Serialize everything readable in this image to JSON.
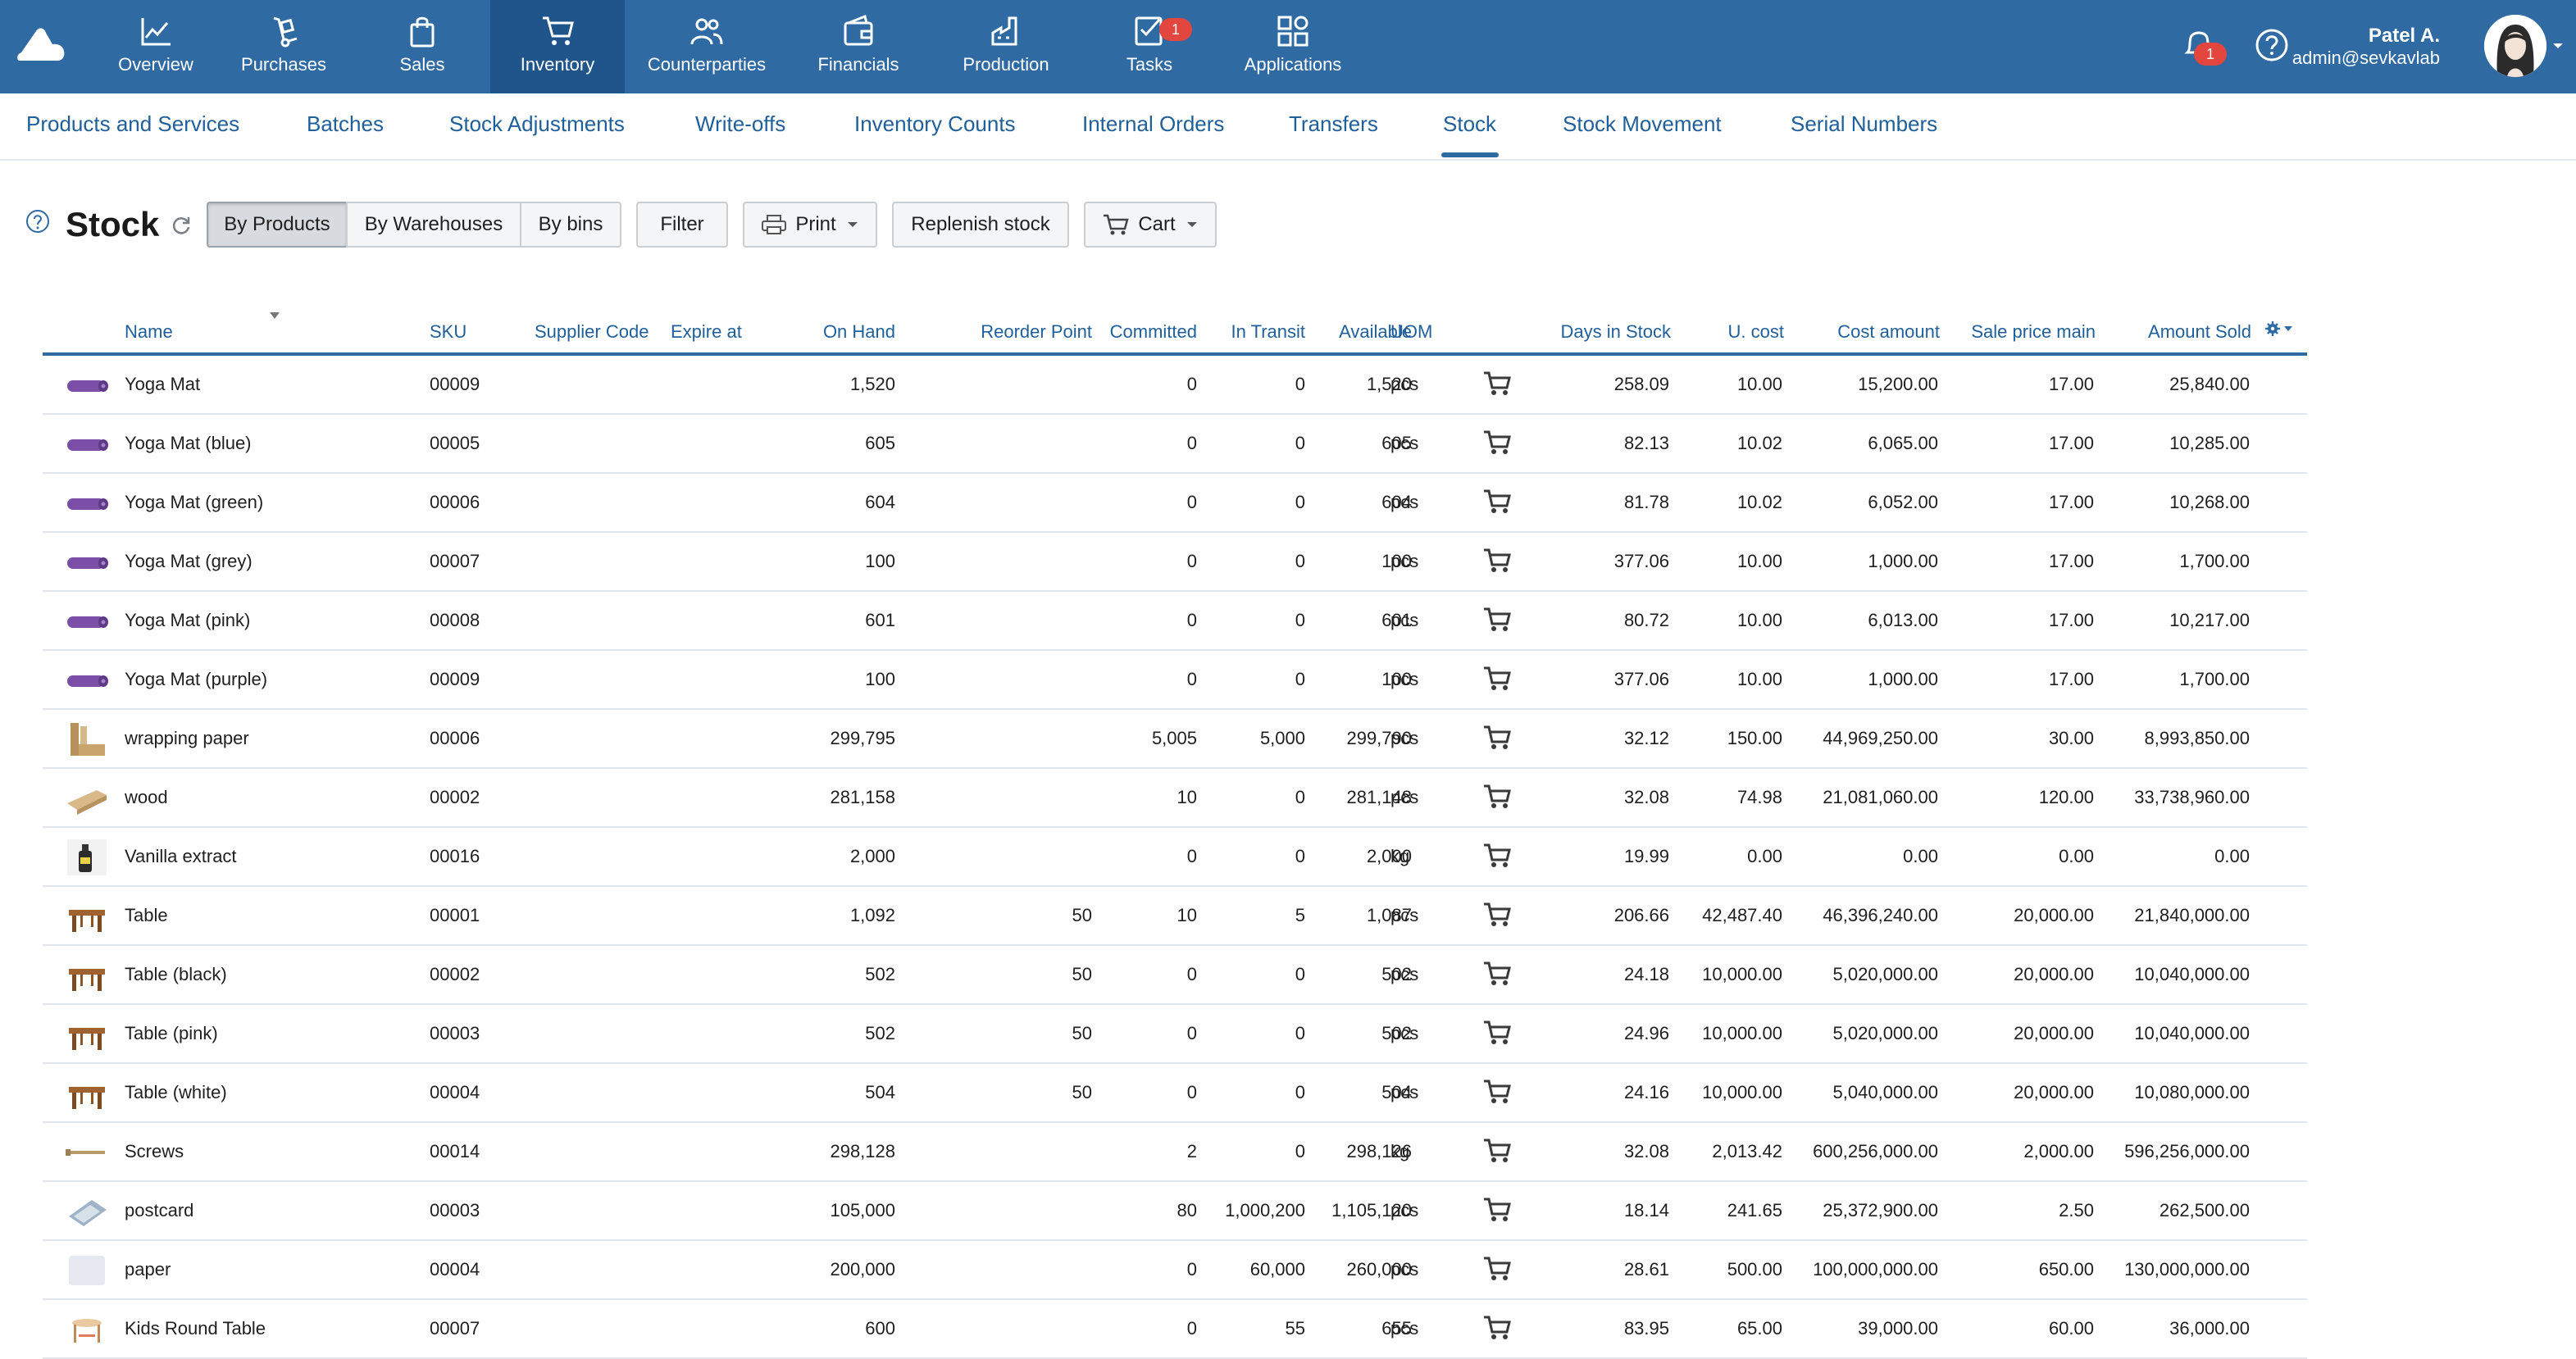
{
  "topnav": {
    "items": [
      {
        "label": "Overview",
        "icon": "chart-line-icon"
      },
      {
        "label": "Purchases",
        "icon": "hand-truck-icon"
      },
      {
        "label": "Sales",
        "icon": "shopping-bag-icon"
      },
      {
        "label": "Inventory",
        "icon": "cart-icon"
      },
      {
        "label": "Counterparties",
        "icon": "people-icon"
      },
      {
        "label": "Financials",
        "icon": "wallet-icon"
      },
      {
        "label": "Production",
        "icon": "factory-icon"
      },
      {
        "label": "Tasks",
        "icon": "checklist-icon"
      },
      {
        "label": "Applications",
        "icon": "apps-icon"
      }
    ],
    "tasks_badge": "1",
    "notifications_badge": "1",
    "user_name": "Patel A.",
    "user_email": "admin@sevkavlab"
  },
  "subnav": {
    "items": [
      "Products and Services",
      "Batches",
      "Stock Adjustments",
      "Write-offs",
      "Inventory Counts",
      "Internal Orders",
      "Transfers",
      "Stock",
      "Stock Movement",
      "Serial Numbers"
    ],
    "active": "Stock"
  },
  "page": {
    "title": "Stock",
    "view_buttons": [
      "By Products",
      "By Warehouses",
      "By bins"
    ],
    "filter_label": "Filter",
    "print_label": "Print",
    "replenish_label": "Replenish stock",
    "cart_label": "Cart"
  },
  "table": {
    "columns": {
      "name": "Name",
      "sku": "SKU",
      "supplier_code": "Supplier Code",
      "expire_at": "Expire at",
      "on_hand": "On Hand",
      "reorder_point": "Reorder Point",
      "committed": "Committed",
      "in_transit": "In Transit",
      "available": "Available",
      "uom": "UOM",
      "days_in_stock": "Days in Stock",
      "unit_cost": "U. cost",
      "cost_amount": "Cost amount",
      "sale_price_main": "Sale price main",
      "amount_sold": "Amount Sold"
    },
    "rows": [
      {
        "thumb": "yoga-mat",
        "name": "Yoga Mat",
        "sku": "00009",
        "on_hand": "1,520",
        "reorder_point": "",
        "committed": "0",
        "in_transit": "0",
        "available": "1,520",
        "uom": "pcs",
        "days": "258.09",
        "ucost": "10.00",
        "cost_amount": "15,200.00",
        "sale_price": "17.00",
        "amount_sold": "25,840.00"
      },
      {
        "thumb": "yoga-mat",
        "name": "Yoga Mat (blue)",
        "sku": "00005",
        "on_hand": "605",
        "reorder_point": "",
        "committed": "0",
        "in_transit": "0",
        "available": "605",
        "uom": "pcs",
        "days": "82.13",
        "ucost": "10.02",
        "cost_amount": "6,065.00",
        "sale_price": "17.00",
        "amount_sold": "10,285.00"
      },
      {
        "thumb": "yoga-mat",
        "name": "Yoga Mat (green)",
        "sku": "00006",
        "on_hand": "604",
        "reorder_point": "",
        "committed": "0",
        "in_transit": "0",
        "available": "604",
        "uom": "pcs",
        "days": "81.78",
        "ucost": "10.02",
        "cost_amount": "6,052.00",
        "sale_price": "17.00",
        "amount_sold": "10,268.00"
      },
      {
        "thumb": "yoga-mat",
        "name": "Yoga Mat (grey)",
        "sku": "00007",
        "on_hand": "100",
        "reorder_point": "",
        "committed": "0",
        "in_transit": "0",
        "available": "100",
        "uom": "pcs",
        "days": "377.06",
        "ucost": "10.00",
        "cost_amount": "1,000.00",
        "sale_price": "17.00",
        "amount_sold": "1,700.00"
      },
      {
        "thumb": "yoga-mat",
        "name": "Yoga Mat (pink)",
        "sku": "00008",
        "on_hand": "601",
        "reorder_point": "",
        "committed": "0",
        "in_transit": "0",
        "available": "601",
        "uom": "pcs",
        "days": "80.72",
        "ucost": "10.00",
        "cost_amount": "6,013.00",
        "sale_price": "17.00",
        "amount_sold": "10,217.00"
      },
      {
        "thumb": "yoga-mat",
        "name": "Yoga Mat (purple)",
        "sku": "00009",
        "on_hand": "100",
        "reorder_point": "",
        "committed": "0",
        "in_transit": "0",
        "available": "100",
        "uom": "pcs",
        "days": "377.06",
        "ucost": "10.00",
        "cost_amount": "1,000.00",
        "sale_price": "17.00",
        "amount_sold": "1,700.00"
      },
      {
        "thumb": "paper-roll",
        "name": "wrapping paper",
        "sku": "00006",
        "on_hand": "299,795",
        "reorder_point": "",
        "committed": "5,005",
        "in_transit": "5,000",
        "available": "299,790",
        "uom": "pcs",
        "days": "32.12",
        "ucost": "150.00",
        "cost_amount": "44,969,250.00",
        "sale_price": "30.00",
        "amount_sold": "8,993,850.00"
      },
      {
        "thumb": "wood",
        "name": "wood",
        "sku": "00002",
        "on_hand": "281,158",
        "reorder_point": "",
        "committed": "10",
        "in_transit": "0",
        "available": "281,148",
        "uom": "pcs",
        "days": "32.08",
        "ucost": "74.98",
        "cost_amount": "21,081,060.00",
        "sale_price": "120.00",
        "amount_sold": "33,738,960.00"
      },
      {
        "thumb": "bottle",
        "name": "Vanilla extract",
        "sku": "00016",
        "on_hand": "2,000",
        "reorder_point": "",
        "committed": "0",
        "in_transit": "0",
        "available": "2,000",
        "uom": "kg",
        "days": "19.99",
        "ucost": "0.00",
        "cost_amount": "0.00",
        "sale_price": "0.00",
        "amount_sold": "0.00"
      },
      {
        "thumb": "table",
        "name": "Table",
        "sku": "00001",
        "on_hand": "1,092",
        "reorder_point": "50",
        "committed": "10",
        "in_transit": "5",
        "available": "1,087",
        "uom": "pcs",
        "days": "206.66",
        "ucost": "42,487.40",
        "cost_amount": "46,396,240.00",
        "sale_price": "20,000.00",
        "amount_sold": "21,840,000.00"
      },
      {
        "thumb": "table",
        "name": "Table (black)",
        "sku": "00002",
        "on_hand": "502",
        "reorder_point": "50",
        "committed": "0",
        "in_transit": "0",
        "available": "502",
        "uom": "pcs",
        "days": "24.18",
        "ucost": "10,000.00",
        "cost_amount": "5,020,000.00",
        "sale_price": "20,000.00",
        "amount_sold": "10,040,000.00"
      },
      {
        "thumb": "table",
        "name": "Table (pink)",
        "sku": "00003",
        "on_hand": "502",
        "reorder_point": "50",
        "committed": "0",
        "in_transit": "0",
        "available": "502",
        "uom": "pcs",
        "days": "24.96",
        "ucost": "10,000.00",
        "cost_amount": "5,020,000.00",
        "sale_price": "20,000.00",
        "amount_sold": "10,040,000.00"
      },
      {
        "thumb": "table",
        "name": "Table (white)",
        "sku": "00004",
        "on_hand": "504",
        "reorder_point": "50",
        "committed": "0",
        "in_transit": "0",
        "available": "504",
        "uom": "pcs",
        "days": "24.16",
        "ucost": "10,000.00",
        "cost_amount": "5,040,000.00",
        "sale_price": "20,000.00",
        "amount_sold": "10,080,000.00"
      },
      {
        "thumb": "screw",
        "name": "Screws",
        "sku": "00014",
        "on_hand": "298,128",
        "reorder_point": "",
        "committed": "2",
        "in_transit": "0",
        "available": "298,126",
        "uom": "kg",
        "days": "32.08",
        "ucost": "2,013.42",
        "cost_amount": "600,256,000.00",
        "sale_price": "2,000.00",
        "amount_sold": "596,256,000.00"
      },
      {
        "thumb": "postcard",
        "name": "postcard",
        "sku": "00003",
        "on_hand": "105,000",
        "reorder_point": "",
        "committed": "80",
        "in_transit": "1,000,200",
        "available": "1,105,120",
        "uom": "pcs",
        "days": "18.14",
        "ucost": "241.65",
        "cost_amount": "25,372,900.00",
        "sale_price": "2.50",
        "amount_sold": "262,500.00"
      },
      {
        "thumb": "paper",
        "name": "paper",
        "sku": "00004",
        "on_hand": "200,000",
        "reorder_point": "",
        "committed": "0",
        "in_transit": "60,000",
        "available": "260,000",
        "uom": "pcs",
        "days": "28.61",
        "ucost": "500.00",
        "cost_amount": "100,000,000.00",
        "sale_price": "650.00",
        "amount_sold": "130,000,000.00"
      },
      {
        "thumb": "kids-table",
        "name": "Kids Round Table",
        "sku": "00007",
        "on_hand": "600",
        "reorder_point": "",
        "committed": "0",
        "in_transit": "55",
        "available": "655",
        "uom": "pcs",
        "days": "83.95",
        "ucost": "65.00",
        "cost_amount": "39,000.00",
        "sale_price": "60.00",
        "amount_sold": "36,000.00"
      }
    ]
  }
}
